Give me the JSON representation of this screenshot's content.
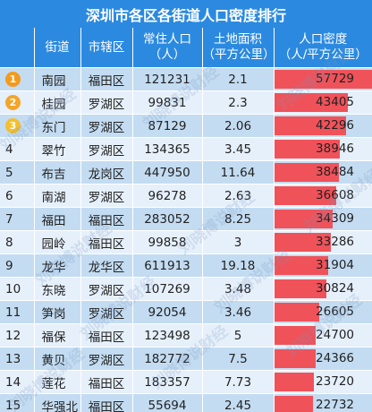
{
  "title": "深圳市各区各街道人口密度排行",
  "headers": {
    "rank": "",
    "street": "街道",
    "district": "市辖区",
    "population_line1": "常住人口",
    "population_line2": "（人）",
    "area_line1": "土地面积",
    "area_line2": "（平方公里）",
    "density_line1": "人口密度",
    "density_line2": "（人/平方公里）"
  },
  "watermark": "刘晓博说财经",
  "colors": {
    "header_bg": "#2b8ae0",
    "row_dark": "#c3dcf2",
    "row_light": "#e6f0fb",
    "bar": "#f0525a",
    "gold": "#f39a1e",
    "silver": "#f3a52a",
    "bronze": "#f5be2c"
  },
  "rows": [
    {
      "rank": "1",
      "street": "南园",
      "district": "福田区",
      "population": "121231",
      "area": "2.1",
      "density": "57729"
    },
    {
      "rank": "2",
      "street": "桂园",
      "district": "罗湖区",
      "population": "99831",
      "area": "2.3",
      "density": "43405"
    },
    {
      "rank": "3",
      "street": "东门",
      "district": "罗湖区",
      "population": "87129",
      "area": "2.06",
      "density": "42296"
    },
    {
      "rank": "4",
      "street": "翠竹",
      "district": "罗湖区",
      "population": "134365",
      "area": "3.45",
      "density": "38946"
    },
    {
      "rank": "5",
      "street": "布吉",
      "district": "龙岗区",
      "population": "447950",
      "area": "11.64",
      "density": "38484"
    },
    {
      "rank": "6",
      "street": "南湖",
      "district": "罗湖区",
      "population": "96278",
      "area": "2.63",
      "density": "36608"
    },
    {
      "rank": "7",
      "street": "福田",
      "district": "福田区",
      "population": "283052",
      "area": "8.25",
      "density": "34309"
    },
    {
      "rank": "8",
      "street": "园岭",
      "district": "福田区",
      "population": "99858",
      "area": "3",
      "density": "33286"
    },
    {
      "rank": "9",
      "street": "龙华",
      "district": "龙华区",
      "population": "611913",
      "area": "19.18",
      "density": "31904"
    },
    {
      "rank": "10",
      "street": "东晓",
      "district": "罗湖区",
      "population": "107269",
      "area": "3.48",
      "density": "30824"
    },
    {
      "rank": "11",
      "street": "笋岗",
      "district": "罗湖区",
      "population": "92054",
      "area": "3.46",
      "density": "26605"
    },
    {
      "rank": "12",
      "street": "福保",
      "district": "福田区",
      "population": "123498",
      "area": "5",
      "density": "24700"
    },
    {
      "rank": "13",
      "street": "黄贝",
      "district": "罗湖区",
      "population": "182772",
      "area": "7.5",
      "density": "24366"
    },
    {
      "rank": "14",
      "street": "莲花",
      "district": "福田区",
      "population": "183357",
      "area": "7.73",
      "density": "23720"
    },
    {
      "rank": "15",
      "street": "华强北",
      "district": "福田区",
      "population": "55694",
      "area": "2.45",
      "density": "22732"
    }
  ],
  "chart_data": {
    "type": "table",
    "title": "深圳市各区各街道人口密度排行",
    "columns": [
      "",
      "街道",
      "市辖区",
      "常住人口（人）",
      "土地面积（平方公里）",
      "人口密度（人/平方公里）"
    ],
    "bar_column": "人口密度（人/平方公里）",
    "bar_max": 57729,
    "categories": [
      "南园",
      "桂园",
      "东门",
      "翠竹",
      "布吉",
      "南湖",
      "福田",
      "园岭",
      "龙华",
      "东晓",
      "笋岗",
      "福保",
      "黄贝",
      "莲花",
      "华强北"
    ],
    "values": [
      57729,
      43405,
      42296,
      38946,
      38484,
      36608,
      34309,
      33286,
      31904,
      30824,
      26605,
      24700,
      24366,
      23720,
      22732
    ]
  }
}
